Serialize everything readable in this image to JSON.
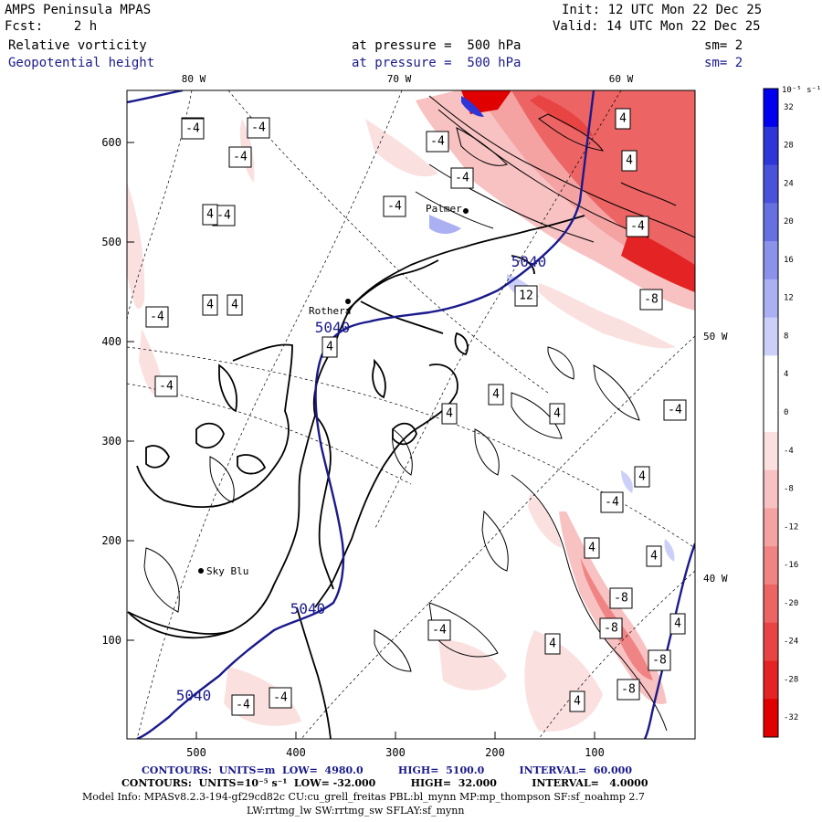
{
  "header": {
    "model": "AMPS Peninsula MPAS",
    "init": "Init: 12 UTC Mon 22 Dec 25",
    "fcst": "Fcst:    2 h",
    "valid": "Valid: 14 UTC Mon 22 Dec 25"
  },
  "fields": [
    {
      "name": "Relative vorticity",
      "level": "at pressure =  500 hPa",
      "smooth": "sm= 2"
    },
    {
      "name": "Geopotential height",
      "level": "at pressure =  500 hPa",
      "smooth": "sm= 2"
    }
  ],
  "map": {
    "x_ticks": [
      "500",
      "400",
      "300",
      "200",
      "100"
    ],
    "y_ticks": [
      "600",
      "500",
      "400",
      "300",
      "200",
      "100"
    ],
    "lon_labels": [
      "80 W",
      "70 W",
      "60 W",
      "50 W",
      "40 W"
    ],
    "places": [
      "Palmer",
      "Rothera",
      "Sky Blu"
    ],
    "height_contours": [
      "5040",
      "5040",
      "5040",
      "5040"
    ],
    "vorticity_labels": [
      "-4",
      "-4",
      "-4",
      "-4",
      "-4",
      "4",
      "4",
      "-4",
      "-4",
      "-4",
      "-4",
      "-4",
      "4",
      "4",
      "-4",
      "-8",
      "12",
      "4",
      "4",
      "4",
      "4",
      "-4",
      "4",
      "4",
      "-4",
      "4",
      "-8",
      "-8",
      "4",
      "4",
      "-8",
      "-4",
      "4",
      "-8",
      "-4",
      "-4",
      "4"
    ]
  },
  "colorbar": {
    "units": "10⁻⁵ s⁻¹",
    "ticks": [
      "32",
      "28",
      "24",
      "20",
      "16",
      "12",
      "8",
      "4",
      "0",
      "-4",
      "-8",
      "-12",
      "-16",
      "-20",
      "-24",
      "-28",
      "-32"
    ],
    "colors": [
      "#0000ee",
      "#2e36d8",
      "#4a52dc",
      "#6670e0",
      "#8a92ea",
      "#aab0f2",
      "#ccd0f8",
      "#ffffff",
      "#ffffff",
      "#fbe0e0",
      "#f8c2c2",
      "#f4a2a2",
      "#f08484",
      "#ec6464",
      "#e84444",
      "#e42424",
      "#e00000"
    ]
  },
  "footer": {
    "contours_height": "CONTOURS:  UNITS=m  LOW=  4980.0          HIGH=  5100.0          INTERVAL=  60.000",
    "contours_vort": "CONTOURS:  UNITS=10⁻⁵ s⁻¹  LOW= -32.000          HIGH=  32.000          INTERVAL=   4.0000",
    "model_info": "Model Info: MPASv8.2.3-194-gf29cd82c CU:cu_grell_freitas PBL:bl_mynn MP:mp_thompson SF:sf_noahmp 2.7",
    "model_info2": "LW:rrtmg_lw SW:rrtmg_sw SFLAY:sf_mynn"
  }
}
